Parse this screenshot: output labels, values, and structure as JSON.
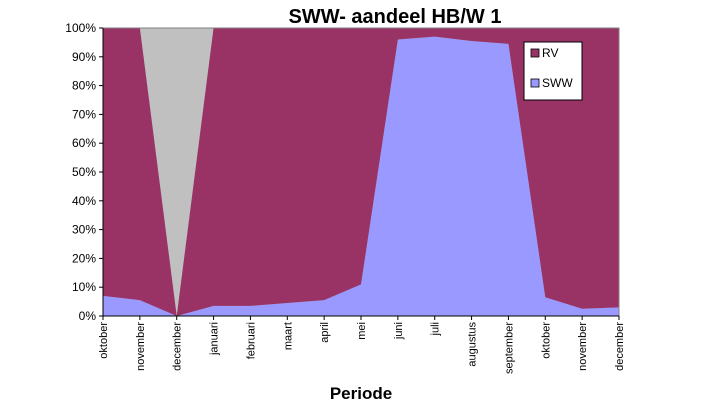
{
  "chart_data": {
    "type": "area",
    "stacked": "percent",
    "title": "SWW- aandeel HB/W 1",
    "xlabel": "Periode",
    "ylabel": "",
    "ylim": [
      0,
      100
    ],
    "yticks": [
      "0%",
      "10%",
      "20%",
      "30%",
      "40%",
      "50%",
      "60%",
      "70%",
      "80%",
      "90%",
      "100%"
    ],
    "categories": [
      "oktober",
      "november",
      "december",
      "januari",
      "februari",
      "maart",
      "april",
      "mei",
      "juni",
      "juli",
      "augustus",
      "september",
      "oktober",
      "november",
      "december"
    ],
    "series": [
      {
        "name": "SWW",
        "color": "#9999ff",
        "values": [
          7,
          5.5,
          0,
          3.5,
          3.5,
          4.5,
          5.5,
          11,
          96,
          97,
          95.5,
          94.5,
          6.5,
          2.5,
          3
        ]
      },
      {
        "name": "RV",
        "color": "#993366",
        "values": [
          93,
          94.5,
          0,
          96.5,
          96.5,
          95.5,
          94.5,
          89,
          4,
          3,
          4.5,
          5.5,
          93.5,
          97.5,
          97
        ]
      }
    ],
    "gap_color": "#c0c0c0",
    "legend": {
      "position": "top-right",
      "entries": [
        "RV",
        "SWW"
      ]
    },
    "grid": false
  }
}
